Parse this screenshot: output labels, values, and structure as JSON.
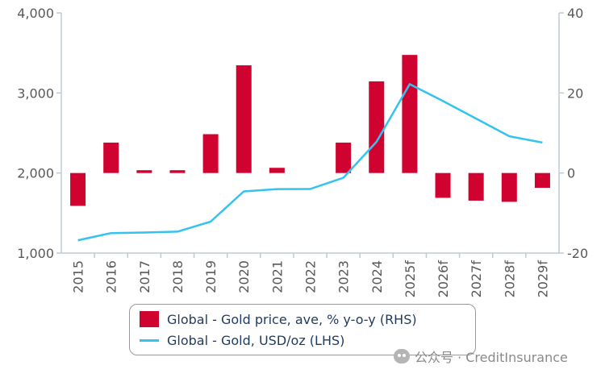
{
  "chart_data": {
    "type": "bar+line",
    "categories": [
      "2015",
      "2016",
      "2017",
      "2018",
      "2019",
      "2020",
      "2021",
      "2022",
      "2023",
      "2024",
      "2025f",
      "2026f",
      "2027f",
      "2028f",
      "2029f"
    ],
    "series": [
      {
        "name": "Global - Gold price, ave, % y-o-y (RHS)",
        "type": "bar",
        "axis": "right",
        "values": [
          -8.2,
          7.6,
          0.7,
          0.7,
          9.7,
          26.9,
          1.3,
          0.0,
          7.6,
          22.9,
          29.5,
          -6.2,
          -6.9,
          -7.2,
          -3.7
        ]
      },
      {
        "name": "Global - Gold, USD/oz (LHS)",
        "type": "line",
        "axis": "left",
        "values": [
          1160,
          1250,
          1257,
          1268,
          1393,
          1770,
          1799,
          1800,
          1940,
          2390,
          3110,
          2900,
          2680,
          2460,
          2380
        ]
      }
    ],
    "left_axis": {
      "min": 1000,
      "max": 4000,
      "ticks": [
        1000,
        2000,
        3000,
        4000
      ],
      "tick_labels": [
        "1,000",
        "2,000",
        "3,000",
        "4,000"
      ]
    },
    "right_axis": {
      "min": -20,
      "max": 40,
      "ticks": [
        -20,
        0,
        20,
        40
      ],
      "tick_labels": [
        "-20",
        "0",
        "20",
        "40"
      ]
    },
    "grid": false,
    "legend_position": "bottom"
  },
  "colors": {
    "bar": "#d0022f",
    "line": "#33c3f0",
    "axis": "#bfcad5",
    "tick_text": "#595959",
    "legend_text": "#1f3a5f"
  },
  "legend": {
    "items": [
      {
        "label": "Global - Gold price, ave, % y-o-y (RHS)"
      },
      {
        "label": "Global - Gold, USD/oz (LHS)"
      }
    ]
  },
  "watermark": {
    "icon": "wechat-icon",
    "text": "公众号 · CreditInsurance"
  }
}
